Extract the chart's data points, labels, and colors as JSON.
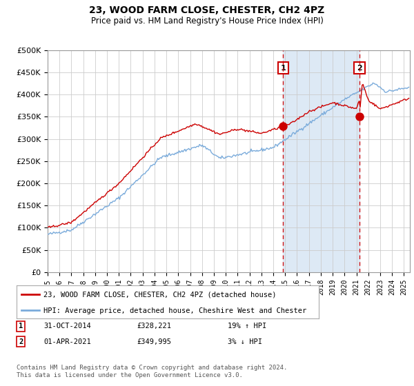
{
  "title": "23, WOOD FARM CLOSE, CHESTER, CH2 4PZ",
  "subtitle": "Price paid vs. HM Land Registry's House Price Index (HPI)",
  "ylabel_ticks": [
    "£0",
    "£50K",
    "£100K",
    "£150K",
    "£200K",
    "£250K",
    "£300K",
    "£350K",
    "£400K",
    "£450K",
    "£500K"
  ],
  "ytick_values": [
    0,
    50000,
    100000,
    150000,
    200000,
    250000,
    300000,
    350000,
    400000,
    450000,
    500000
  ],
  "ylim": [
    0,
    500000
  ],
  "legend_line1": "23, WOOD FARM CLOSE, CHESTER, CH2 4PZ (detached house)",
  "legend_line2": "HPI: Average price, detached house, Cheshire West and Chester",
  "annotation1_label": "1",
  "annotation1_date": "31-OCT-2014",
  "annotation1_price": "£328,221",
  "annotation1_hpi": "19% ↑ HPI",
  "annotation2_label": "2",
  "annotation2_date": "01-APR-2021",
  "annotation2_price": "£349,995",
  "annotation2_hpi": "3% ↓ HPI",
  "footer": "Contains HM Land Registry data © Crown copyright and database right 2024.\nThis data is licensed under the Open Government Licence v3.0.",
  "red_color": "#cc0000",
  "blue_color": "#7aabdb",
  "shade_color": "#dde9f5",
  "annotation_vline_color": "#cc0000",
  "background_color": "#ffffff",
  "grid_color": "#cccccc",
  "marker1_x": 2014.83,
  "marker1_y": 328221,
  "marker2_x": 2021.25,
  "marker2_y": 349995,
  "xlim_left": 1995.0,
  "xlim_right": 2025.5
}
